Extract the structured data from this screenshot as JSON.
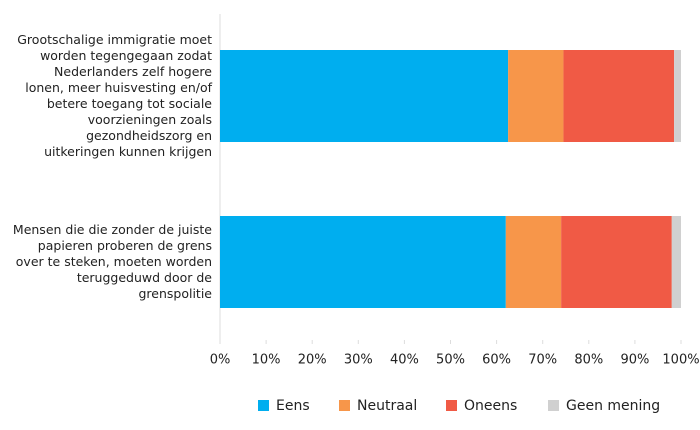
{
  "chart_data": {
    "type": "stacked-bar-horizontal",
    "categories": [
      "Grootschalige immigratie moet worden tegengegaan zodat Nederlanders zelf hogere lonen, meer huisvesting en/of betere toegang tot sociale voorzieningen zoals gezondheidszorg en uitkeringen kunnen krijgen",
      "Mensen die die zonder de juiste papieren proberen de grens over te steken, moeten worden teruggeduwd door de grenspolitie"
    ],
    "series": [
      {
        "name": "Eens",
        "color": "#00aeef",
        "values": [
          62.5,
          62
        ]
      },
      {
        "name": "Neutraal",
        "color": "#f7964a",
        "values": [
          12,
          12
        ]
      },
      {
        "name": "Oneens",
        "color": "#f05a45",
        "values": [
          24,
          24
        ]
      },
      {
        "name": "Geen mening",
        "color": "#d0d0d0",
        "values": [
          1.5,
          2
        ]
      }
    ],
    "xlim": [
      0,
      100
    ],
    "xticks": [
      {
        "value": 0,
        "label": "0%"
      },
      {
        "value": 10,
        "label": "10%"
      },
      {
        "value": 20,
        "label": "20%"
      },
      {
        "value": 30,
        "label": "30%"
      },
      {
        "value": 40,
        "label": "40%"
      },
      {
        "value": 50,
        "label": "50%"
      },
      {
        "value": 60,
        "label": "60%"
      },
      {
        "value": 70,
        "label": "70%"
      },
      {
        "value": 80,
        "label": "80%"
      },
      {
        "value": 90,
        "label": "90%"
      },
      {
        "value": 100,
        "label": "100%"
      }
    ],
    "legend": "bottom"
  }
}
